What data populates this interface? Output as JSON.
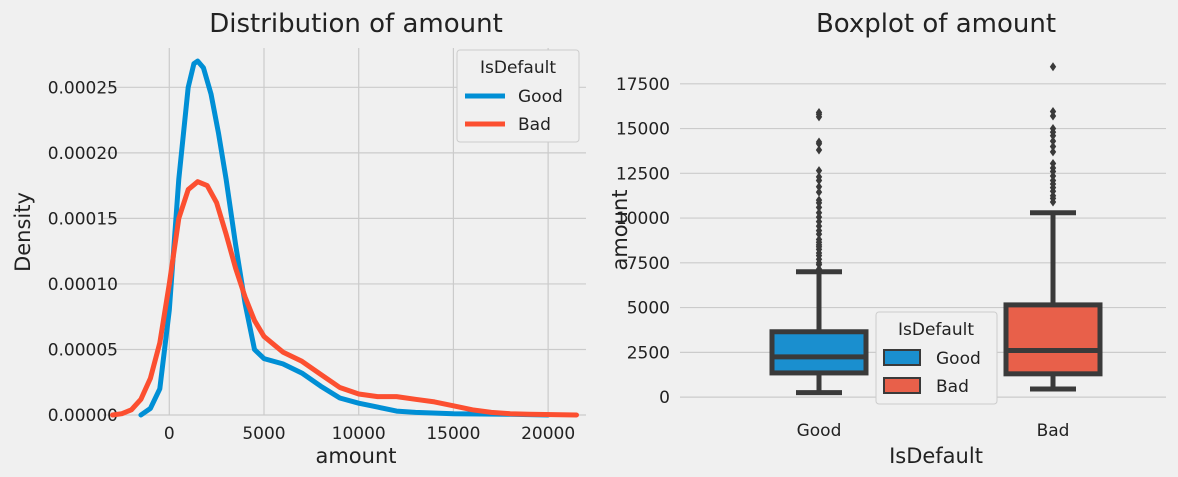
{
  "chart_data": [
    {
      "type": "line",
      "title": "Distribution of amount",
      "xlabel": "amount",
      "ylabel": "Density",
      "xlim": [
        -3500,
        22000
      ],
      "ylim": [
        0,
        0.00028
      ],
      "xticks": [
        0,
        5000,
        10000,
        15000,
        20000
      ],
      "xtick_labels": [
        "0",
        "5000",
        "10000",
        "15000",
        "20000"
      ],
      "yticks": [
        0,
        5e-05,
        0.0001,
        0.00015,
        0.0002,
        0.00025
      ],
      "ytick_labels": [
        "0.00000",
        "0.00005",
        "0.00010",
        "0.00015",
        "0.00020",
        "0.00025"
      ],
      "grid": true,
      "legend": {
        "title": "IsDefault",
        "placement": "top-right"
      },
      "series": [
        {
          "name": "Good",
          "color": "#008fd5",
          "points": [
            [
              -1500,
              0
            ],
            [
              -1000,
              5e-06
            ],
            [
              -500,
              2e-05
            ],
            [
              0,
              8e-05
            ],
            [
              500,
              0.00018
            ],
            [
              1000,
              0.00025
            ],
            [
              1300,
              0.000268
            ],
            [
              1500,
              0.00027
            ],
            [
              1800,
              0.000265
            ],
            [
              2200,
              0.000245
            ],
            [
              2600,
              0.000215
            ],
            [
              3000,
              0.00018
            ],
            [
              3500,
              0.00013
            ],
            [
              4000,
              8.5e-05
            ],
            [
              4500,
              5e-05
            ],
            [
              5000,
              4.3e-05
            ],
            [
              6000,
              3.9e-05
            ],
            [
              7000,
              3.2e-05
            ],
            [
              8000,
              2.2e-05
            ],
            [
              9000,
              1.3e-05
            ],
            [
              10000,
              9e-06
            ],
            [
              11000,
              6e-06
            ],
            [
              12000,
              3e-06
            ],
            [
              13000,
              2e-06
            ],
            [
              15000,
              1e-06
            ],
            [
              18000,
              5e-07
            ],
            [
              20000,
              0
            ]
          ]
        },
        {
          "name": "Bad",
          "color": "#fc4f30",
          "points": [
            [
              -3000,
              0
            ],
            [
              -2500,
              1e-06
            ],
            [
              -2000,
              4e-06
            ],
            [
              -1500,
              1.2e-05
            ],
            [
              -1000,
              2.8e-05
            ],
            [
              -500,
              5.5e-05
            ],
            [
              0,
              0.0001
            ],
            [
              500,
              0.00015
            ],
            [
              1000,
              0.000172
            ],
            [
              1500,
              0.000178
            ],
            [
              2000,
              0.000175
            ],
            [
              2500,
              0.000162
            ],
            [
              3000,
              0.000138
            ],
            [
              3500,
              0.000112
            ],
            [
              4000,
              9e-05
            ],
            [
              4500,
              7.2e-05
            ],
            [
              5000,
              6e-05
            ],
            [
              6000,
              4.8e-05
            ],
            [
              7000,
              4.1e-05
            ],
            [
              8000,
              3.1e-05
            ],
            [
              9000,
              2.1e-05
            ],
            [
              10000,
              1.6e-05
            ],
            [
              11000,
              1.4e-05
            ],
            [
              12000,
              1.4e-05
            ],
            [
              13000,
              1.2e-05
            ],
            [
              14000,
              1e-05
            ],
            [
              15000,
              7e-06
            ],
            [
              16000,
              4e-06
            ],
            [
              17000,
              2e-06
            ],
            [
              18000,
              1e-06
            ],
            [
              19000,
              5e-07
            ],
            [
              21500,
              0
            ]
          ]
        }
      ]
    },
    {
      "type": "box",
      "title": "Boxplot of amount",
      "xlabel": "IsDefault",
      "ylabel": "amount",
      "ylim": [
        -1000,
        19500
      ],
      "yticks": [
        0,
        2500,
        5000,
        7500,
        10000,
        12500,
        15000,
        17500
      ],
      "ytick_labels": [
        "0",
        "2500",
        "5000",
        "7500",
        "10000",
        "12500",
        "15000",
        "17500"
      ],
      "categories": [
        "Good",
        "Bad"
      ],
      "grid": true,
      "legend": {
        "title": "IsDefault",
        "placement": "bottom-center"
      },
      "series": [
        {
          "name": "Good",
          "color": "#1a8fcf",
          "category_index": 0,
          "min": 250,
          "q1": 1350,
          "median": 2250,
          "q3": 3650,
          "max": 7000,
          "outliers": [
            7150,
            7400,
            7500,
            7700,
            7900,
            8050,
            8250,
            8400,
            8500,
            8650,
            8800,
            9100,
            9300,
            9550,
            9800,
            10050,
            10300,
            10600,
            10850,
            11000,
            11450,
            11750,
            12100,
            12300,
            12650,
            13800,
            14150,
            14250,
            15650,
            15800,
            15900
          ]
        },
        {
          "name": "Bad",
          "color": "#e8604a",
          "category_index": 1,
          "min": 450,
          "q1": 1300,
          "median": 2600,
          "q3": 5150,
          "max": 10300,
          "outliers": [
            10900,
            11100,
            11250,
            11500,
            11700,
            11900,
            12100,
            12350,
            12600,
            12800,
            13050,
            13700,
            14000,
            14300,
            14600,
            14800,
            15000,
            15700,
            15950,
            18450
          ]
        }
      ]
    }
  ]
}
